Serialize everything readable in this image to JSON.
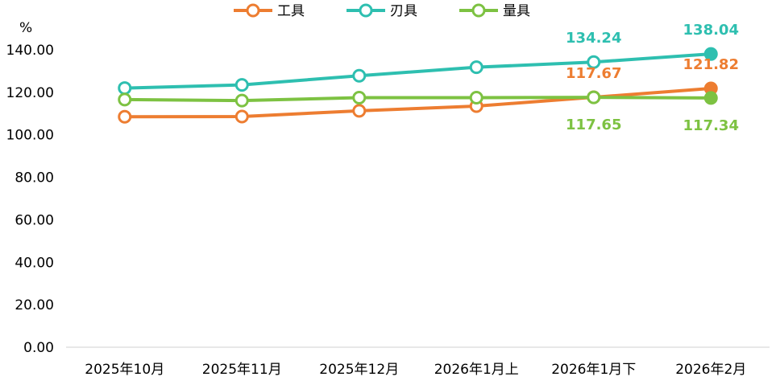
{
  "chart_data": {
    "type": "line",
    "unit_label": "%",
    "categories": [
      "2025年10月",
      "2025年11月",
      "2025年12月",
      "2026年1月上",
      "2026年1月下",
      "2026年2月"
    ],
    "ylim": [
      0,
      140
    ],
    "yticks": [
      "0.00",
      "20.00",
      "40.00",
      "60.00",
      "80.00",
      "100.00",
      "120.00",
      "140.00"
    ],
    "grid": false,
    "legend_position": "top",
    "series": [
      {
        "name": "工具",
        "color": "#ED7D31",
        "values": [
          108.5,
          108.6,
          111.3,
          113.5,
          117.67,
          121.82
        ],
        "labels": [
          {
            "index": 4,
            "text": "117.67",
            "placement": "above"
          },
          {
            "index": 5,
            "text": "121.82",
            "placement": "above"
          }
        ]
      },
      {
        "name": "刃具",
        "color": "#2EBFB0",
        "values": [
          122.0,
          123.5,
          127.8,
          131.8,
          134.24,
          138.04
        ],
        "labels": [
          {
            "index": 4,
            "text": "134.24",
            "placement": "above"
          },
          {
            "index": 5,
            "text": "138.04",
            "placement": "above"
          }
        ]
      },
      {
        "name": "量具",
        "color": "#7DC242",
        "values": [
          116.6,
          116.1,
          117.5,
          117.5,
          117.65,
          117.34
        ],
        "labels": [
          {
            "index": 4,
            "text": "117.65",
            "placement": "below"
          },
          {
            "index": 5,
            "text": "117.34",
            "placement": "below"
          }
        ]
      }
    ]
  }
}
